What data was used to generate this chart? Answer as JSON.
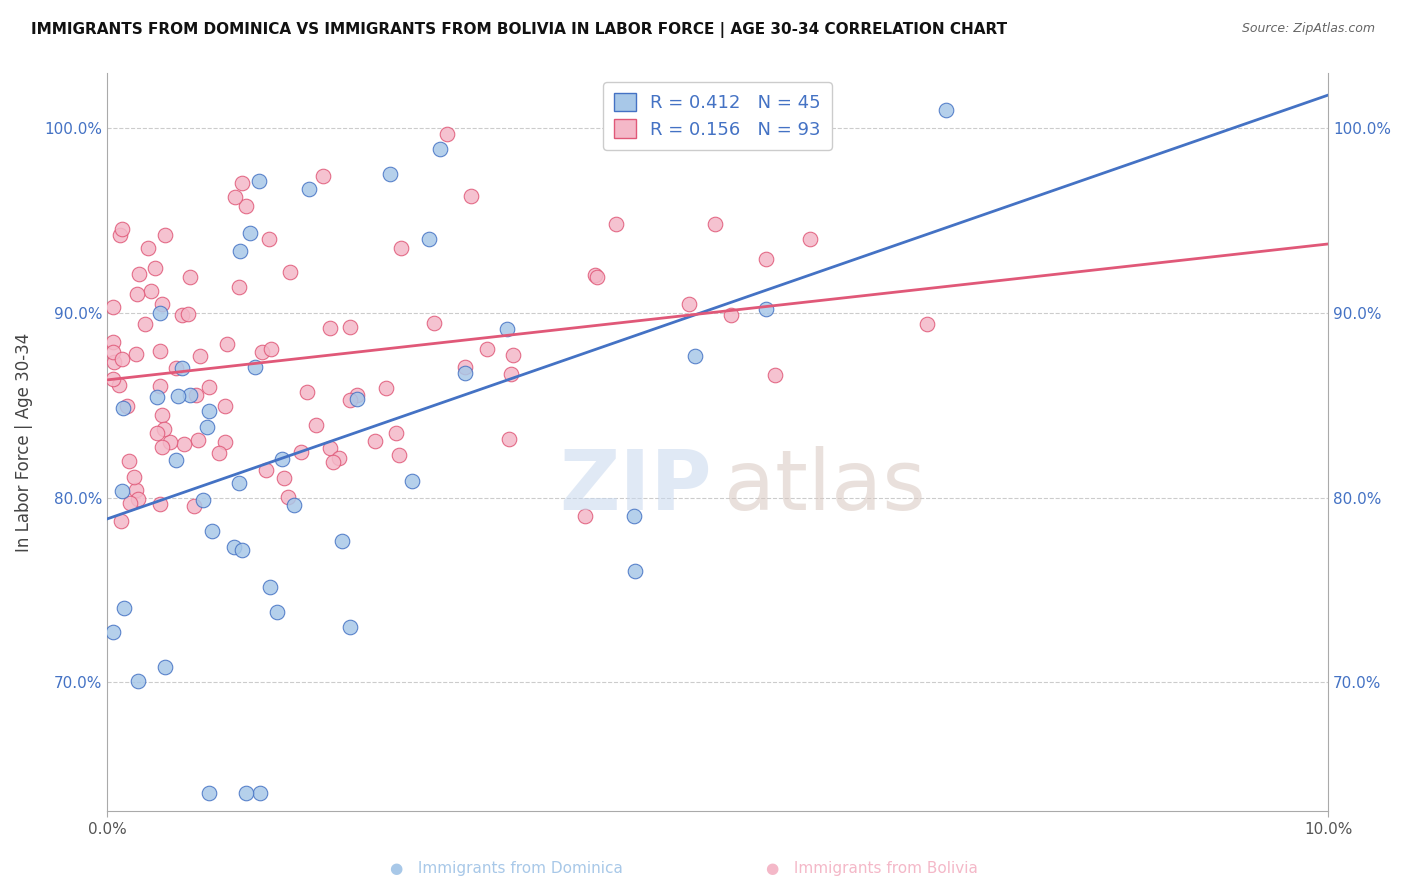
{
  "title": "IMMIGRANTS FROM DOMINICA VS IMMIGRANTS FROM BOLIVIA IN LABOR FORCE | AGE 30-34 CORRELATION CHART",
  "source": "Source: ZipAtlas.com",
  "ylabel": "In Labor Force | Age 30-34",
  "legend_label_1": "Immigrants from Dominica",
  "legend_label_2": "Immigrants from Bolivia",
  "R1": 0.412,
  "N1": 45,
  "R2": 0.156,
  "N2": 93,
  "color_dominica_fill": "#A8C8E8",
  "color_dominica_edge": "#4472C4",
  "color_bolivia_fill": "#F4B8C8",
  "color_bolivia_edge": "#E05878",
  "color_dominica_line": "#4472C4",
  "color_bolivia_line": "#E05878",
  "xlim": [
    0.0,
    10.0
  ],
  "ylim": [
    63.0,
    103.0
  ],
  "yticks": [
    70.0,
    80.0,
    90.0,
    100.0
  ],
  "ytick_labels": [
    "70.0%",
    "80.0%",
    "90.0%",
    "100.0%"
  ],
  "xtick_vals": [
    0.0,
    10.0
  ],
  "xtick_labels": [
    "0.0%",
    "10.0%"
  ],
  "watermark_zip": "ZIP",
  "watermark_atlas": "atlas",
  "grid_color": "#CCCCCC",
  "title_fontsize": 11,
  "tick_fontsize": 11,
  "ylabel_fontsize": 12,
  "legend_fontsize": 13,
  "watermark_fontsize": 60,
  "scatter_size": 110,
  "scatter_alpha": 0.85,
  "line_width": 2.0
}
